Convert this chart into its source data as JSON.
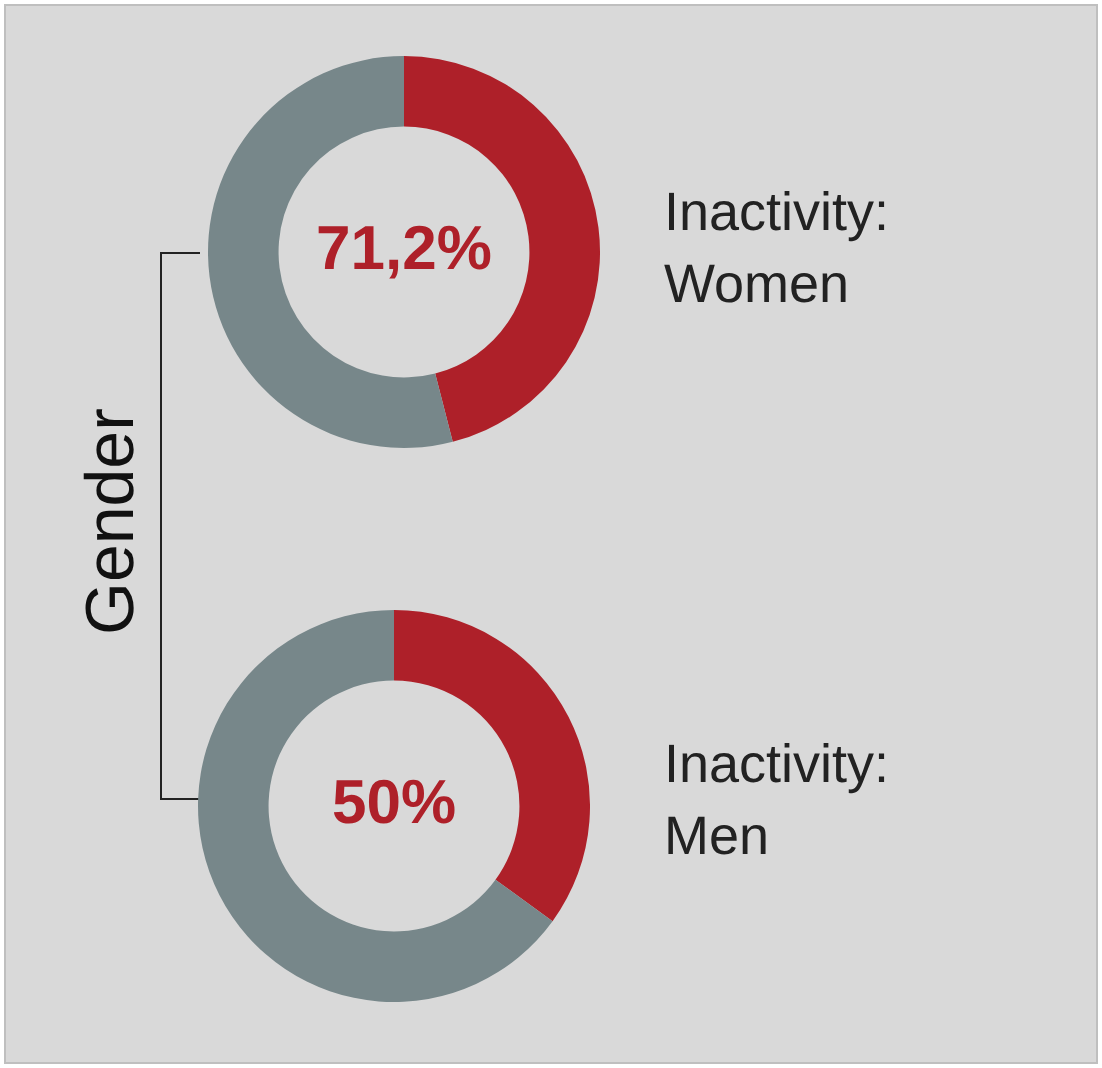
{
  "chart_data": [
    {
      "type": "donut",
      "title": "Inactivity: Women",
      "categories": [
        null,
        null
      ],
      "values": [
        46,
        54
      ],
      "colors": [
        "#ae2029",
        "#77878a"
      ],
      "annotations": [
        "71,2%",
        "Gender"
      ]
    },
    {
      "type": "donut",
      "title": "Inactivity: Men",
      "categories": [
        null,
        null
      ],
      "values": [
        35,
        65
      ],
      "colors": [
        "#ae2029",
        "#77878a"
      ],
      "annotations": [
        "50%"
      ]
    }
  ]
}
